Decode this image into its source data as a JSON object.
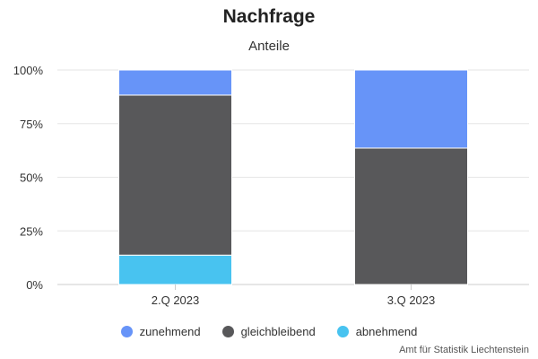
{
  "chart_data": {
    "type": "bar",
    "stacked": true,
    "title": "Nachfrage",
    "subtitle": "Anteile",
    "categories": [
      "2.Q 2023",
      "3.Q 2023"
    ],
    "series": [
      {
        "name": "zunehmend",
        "color": "#6794f8",
        "values": [
          11.7,
          36.4
        ]
      },
      {
        "name": "gleichbleibend",
        "color": "#58585a",
        "values": [
          74.6,
          63.6
        ]
      },
      {
        "name": "abnehmend",
        "color": "#48c3f0",
        "values": [
          13.7,
          0
        ]
      }
    ],
    "stack_order_bottom_to_top": [
      "abnehmend",
      "gleichbleibend",
      "zunehmend"
    ],
    "ylim": [
      0,
      100
    ],
    "yticks": [
      0,
      25,
      50,
      75,
      100
    ],
    "ytick_labels": [
      "0%",
      "25%",
      "50%",
      "75%",
      "100%"
    ],
    "grid": true,
    "legend_position": "bottom"
  },
  "source": "Amt für Statistik Liechtenstein"
}
